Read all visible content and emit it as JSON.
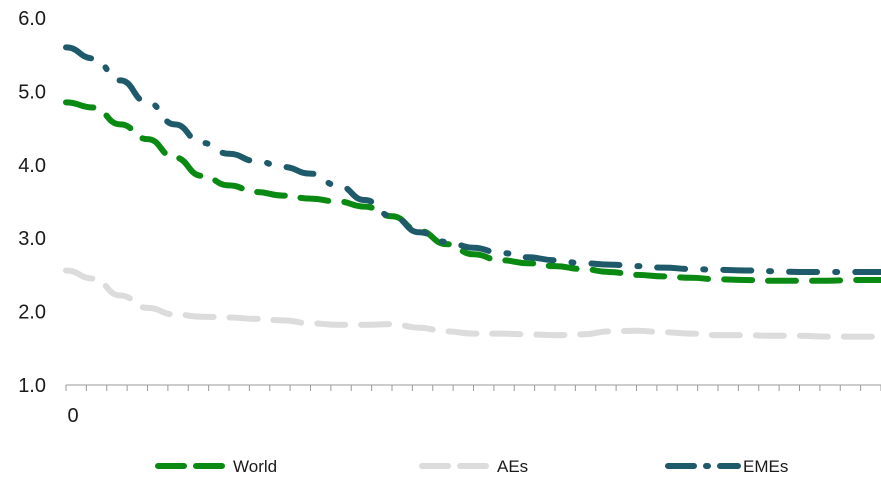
{
  "chart_data": {
    "type": "line",
    "x": [
      0,
      1,
      2,
      3,
      4,
      5,
      6,
      7,
      8,
      9,
      10,
      11,
      12,
      13,
      14,
      15,
      16,
      17,
      18,
      19,
      20,
      21,
      22,
      23,
      24,
      25,
      26,
      27,
      28,
      29,
      30
    ],
    "x_tick_labels": [
      "0"
    ],
    "ylim": [
      1.0,
      6.0
    ],
    "y_ticks": [
      "1.0",
      "2.0",
      "3.0",
      "4.0",
      "5.0",
      "6.0"
    ],
    "grid": false,
    "legend_position": "bottom",
    "series": [
      {
        "name": "World",
        "color": "#0a8a13",
        "dash": "dash",
        "values": [
          4.85,
          4.78,
          4.55,
          4.35,
          4.1,
          3.85,
          3.72,
          3.63,
          3.58,
          3.54,
          3.5,
          3.43,
          3.3,
          3.1,
          2.92,
          2.78,
          2.7,
          2.66,
          2.62,
          2.58,
          2.54,
          2.5,
          2.48,
          2.46,
          2.44,
          2.43,
          2.42,
          2.42,
          2.42,
          2.43,
          2.43
        ]
      },
      {
        "name": "AEs",
        "color": "#dcdcdc",
        "dash": "dash",
        "values": [
          2.56,
          2.45,
          2.22,
          2.05,
          1.96,
          1.93,
          1.92,
          1.9,
          1.88,
          1.84,
          1.82,
          1.82,
          1.83,
          1.78,
          1.73,
          1.7,
          1.7,
          1.69,
          1.68,
          1.69,
          1.73,
          1.74,
          1.72,
          1.7,
          1.68,
          1.68,
          1.67,
          1.67,
          1.66,
          1.66,
          1.66
        ]
      },
      {
        "name": "EMEs",
        "color": "#1e5a6a",
        "dash": "dashdot",
        "values": [
          5.6,
          5.45,
          5.15,
          4.85,
          4.55,
          4.3,
          4.15,
          4.05,
          3.97,
          3.88,
          3.72,
          3.52,
          3.3,
          3.08,
          2.95,
          2.87,
          2.8,
          2.74,
          2.7,
          2.66,
          2.64,
          2.62,
          2.6,
          2.58,
          2.57,
          2.56,
          2.55,
          2.54,
          2.54,
          2.54,
          2.54
        ]
      }
    ]
  }
}
